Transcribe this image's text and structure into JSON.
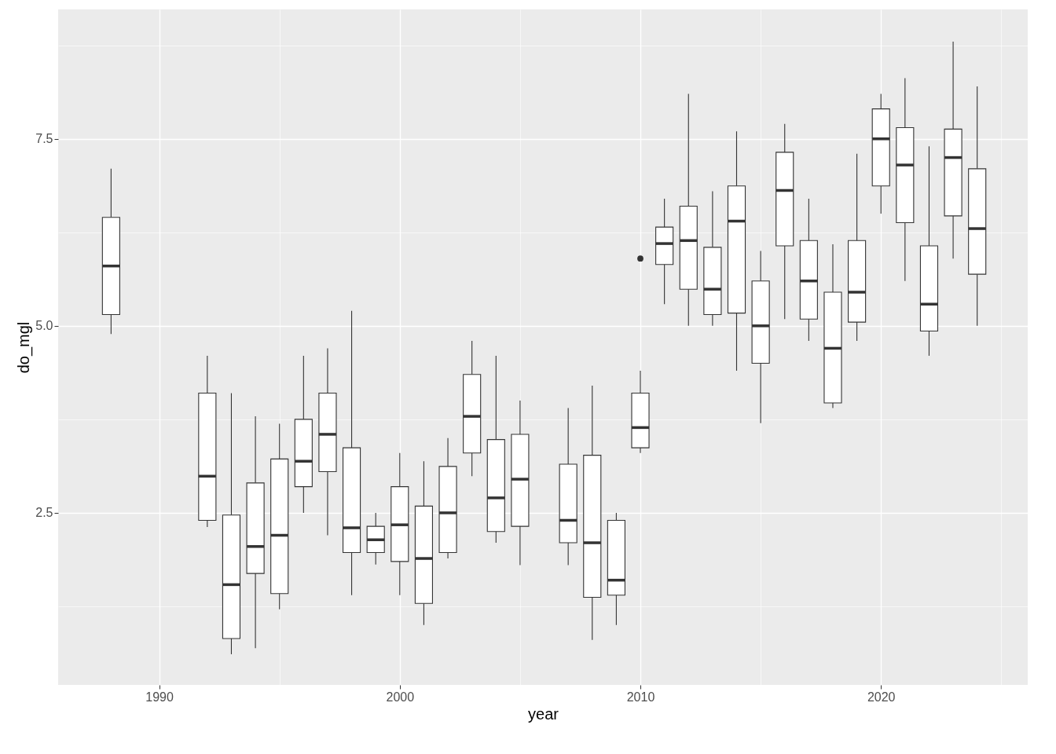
{
  "chart_data": {
    "type": "box",
    "xlabel": "year",
    "ylabel": "do_mgl",
    "x": [
      1988,
      1992,
      1993,
      1994,
      1995,
      1996,
      1997,
      1998,
      1999,
      2000,
      2001,
      2002,
      2003,
      2004,
      2005,
      2007,
      2008,
      2009,
      2010,
      2011,
      2012,
      2013,
      2014,
      2015,
      2016,
      2017,
      2018,
      2019,
      2020,
      2021,
      2022,
      2023,
      2024
    ],
    "boxes": [
      {
        "low": 4.89,
        "q1": 5.15,
        "median": 5.8,
        "q3": 6.45,
        "high": 7.1
      },
      {
        "low": 2.31,
        "q1": 2.4,
        "median": 2.99,
        "q3": 4.1,
        "high": 4.6
      },
      {
        "low": 0.61,
        "q1": 0.82,
        "median": 1.54,
        "q3": 2.47,
        "high": 4.1
      },
      {
        "low": 0.69,
        "q1": 1.69,
        "median": 2.05,
        "q3": 2.9,
        "high": 3.79
      },
      {
        "low": 1.21,
        "q1": 1.42,
        "median": 2.2,
        "q3": 3.22,
        "high": 3.69
      },
      {
        "low": 2.5,
        "q1": 2.85,
        "median": 3.19,
        "q3": 3.75,
        "high": 4.6
      },
      {
        "low": 2.2,
        "q1": 3.05,
        "median": 3.55,
        "q3": 4.1,
        "high": 4.7
      },
      {
        "low": 1.4,
        "q1": 1.97,
        "median": 2.3,
        "q3": 3.37,
        "high": 5.2
      },
      {
        "low": 1.81,
        "q1": 1.97,
        "median": 2.14,
        "q3": 2.32,
        "high": 2.5
      },
      {
        "low": 1.4,
        "q1": 1.85,
        "median": 2.34,
        "q3": 2.85,
        "high": 3.3
      },
      {
        "low": 1.0,
        "q1": 1.29,
        "median": 1.89,
        "q3": 2.59,
        "high": 3.19
      },
      {
        "low": 1.89,
        "q1": 1.97,
        "median": 2.5,
        "q3": 3.12,
        "high": 3.5
      },
      {
        "low": 2.99,
        "q1": 3.3,
        "median": 3.79,
        "q3": 4.35,
        "high": 4.8
      },
      {
        "low": 2.1,
        "q1": 2.25,
        "median": 2.7,
        "q3": 3.48,
        "high": 4.6
      },
      {
        "low": 1.8,
        "q1": 2.32,
        "median": 2.95,
        "q3": 3.55,
        "high": 4.0
      },
      {
        "low": 1.8,
        "q1": 2.1,
        "median": 2.4,
        "q3": 3.15,
        "high": 3.9
      },
      {
        "low": 0.8,
        "q1": 1.37,
        "median": 2.1,
        "q3": 3.27,
        "high": 4.2
      },
      {
        "low": 1.0,
        "q1": 1.4,
        "median": 1.6,
        "q3": 2.4,
        "high": 2.5
      },
      {
        "low": 3.3,
        "q1": 3.37,
        "median": 3.64,
        "q3": 4.1,
        "high": 4.4,
        "outliers": [
          5.9
        ]
      },
      {
        "low": 5.29,
        "q1": 5.82,
        "median": 6.1,
        "q3": 6.32,
        "high": 6.7
      },
      {
        "low": 5.0,
        "q1": 5.49,
        "median": 6.14,
        "q3": 6.6,
        "high": 8.1
      },
      {
        "low": 5.0,
        "q1": 5.15,
        "median": 5.49,
        "q3": 6.05,
        "high": 6.8
      },
      {
        "low": 4.4,
        "q1": 5.17,
        "median": 6.4,
        "q3": 6.87,
        "high": 7.6
      },
      {
        "low": 3.7,
        "q1": 4.5,
        "median": 5.0,
        "q3": 5.6,
        "high": 6.0
      },
      {
        "low": 5.09,
        "q1": 6.07,
        "median": 6.81,
        "q3": 7.32,
        "high": 7.7
      },
      {
        "low": 4.8,
        "q1": 5.09,
        "median": 5.6,
        "q3": 6.14,
        "high": 6.7
      },
      {
        "low": 3.9,
        "q1": 3.97,
        "median": 4.7,
        "q3": 5.45,
        "high": 6.09
      },
      {
        "low": 4.8,
        "q1": 5.05,
        "median": 5.45,
        "q3": 6.14,
        "high": 7.3
      },
      {
        "low": 6.5,
        "q1": 6.87,
        "median": 7.5,
        "q3": 7.9,
        "high": 8.1
      },
      {
        "low": 5.6,
        "q1": 6.38,
        "median": 7.15,
        "q3": 7.65,
        "high": 8.31
      },
      {
        "low": 4.6,
        "q1": 4.93,
        "median": 5.29,
        "q3": 6.07,
        "high": 7.4
      },
      {
        "low": 5.9,
        "q1": 6.47,
        "median": 7.25,
        "q3": 7.63,
        "high": 8.8
      },
      {
        "low": 5.0,
        "q1": 5.69,
        "median": 6.3,
        "q3": 7.1,
        "high": 8.2
      }
    ],
    "xlim": [
      1985.8,
      2026.1
    ],
    "ylim": [
      0.2,
      9.23
    ],
    "xticks": [
      {
        "value": 1990,
        "label": "1990"
      },
      {
        "value": 1995,
        "label": null
      },
      {
        "value": 2000,
        "label": "2000"
      },
      {
        "value": 2005,
        "label": null
      },
      {
        "value": 2010,
        "label": "2010"
      },
      {
        "value": 2015,
        "label": null
      },
      {
        "value": 2020,
        "label": "2020"
      },
      {
        "value": 2025,
        "label": null
      }
    ],
    "yticks": [
      {
        "value": 1.25,
        "label": null
      },
      {
        "value": 2.5,
        "label": "2.5"
      },
      {
        "value": 3.75,
        "label": null
      },
      {
        "value": 5,
        "label": "5.0"
      },
      {
        "value": 6.25,
        "label": null
      },
      {
        "value": 7.5,
        "label": "7.5"
      },
      {
        "value": 8.75,
        "label": null
      }
    ],
    "grid": true
  }
}
